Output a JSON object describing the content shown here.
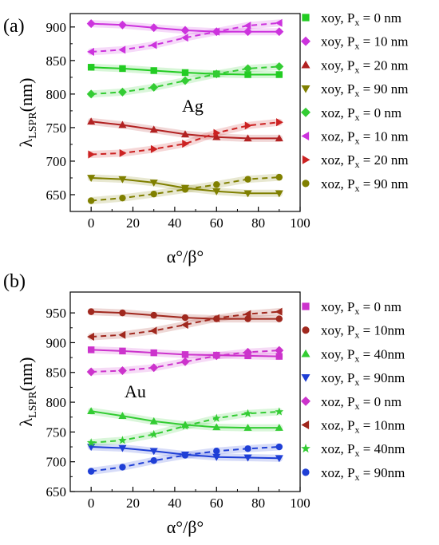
{
  "chart_data": [
    {
      "type": "line",
      "panel_label": "(a)",
      "annotation": "Ag",
      "xlabel": "α°/β°",
      "ylabel": {
        "main": "λ",
        "sub": "LSPR",
        "rest": "(nm)"
      },
      "xlim": [
        -10,
        100
      ],
      "ylim": [
        625,
        920
      ],
      "xticks": [
        0,
        20,
        40,
        60,
        80,
        100
      ],
      "yticks": [
        650,
        700,
        750,
        800,
        850,
        900
      ],
      "x": [
        0,
        15,
        30,
        45,
        60,
        75,
        90
      ],
      "series": [
        {
          "name": "xoy, P",
          "sub": "x",
          "suffix": " = 0 nm",
          "color": "#22cc22",
          "marker": "square",
          "dash": false,
          "values": [
            840,
            838,
            835,
            832,
            830,
            829,
            829
          ]
        },
        {
          "name": "xoy, P",
          "sub": "x",
          "suffix": " = 10 nm",
          "color": "#cc33dd",
          "marker": "diamond",
          "dash": false,
          "values": [
            905,
            903,
            899,
            895,
            893,
            893,
            893
          ]
        },
        {
          "name": "xoy, P",
          "sub": "x",
          "suffix": " = 20 nm",
          "color": "#b22222",
          "marker": "triangle-up",
          "dash": false,
          "values": [
            759,
            754,
            747,
            740,
            736,
            734,
            734
          ]
        },
        {
          "name": "xoy, P",
          "sub": "x",
          "suffix": " = 90 nm",
          "color": "#808000",
          "marker": "triangle-down",
          "dash": false,
          "values": [
            675,
            673,
            668,
            660,
            655,
            652,
            652
          ]
        },
        {
          "name": "xoz, P",
          "sub": "x",
          "suffix": " = 0 nm",
          "color": "#33cc33",
          "marker": "diamond",
          "dash": true,
          "values": [
            800,
            803,
            810,
            820,
            830,
            838,
            841
          ]
        },
        {
          "name": "xoz, P",
          "sub": "x",
          "suffix": " = 10 nm",
          "color": "#cc33dd",
          "marker": "triangle-left",
          "dash": true,
          "values": [
            863,
            866,
            873,
            884,
            893,
            902,
            906
          ]
        },
        {
          "name": "xoz, P",
          "sub": "x",
          "suffix": " = 20 nm",
          "color": "#cc2222",
          "marker": "triangle-right",
          "dash": true,
          "values": [
            710,
            712,
            718,
            726,
            742,
            753,
            758
          ]
        },
        {
          "name": "xoz, P",
          "sub": "x",
          "suffix": " = 90 nm",
          "color": "#808000",
          "marker": "circle",
          "dash": true,
          "values": [
            641,
            645,
            651,
            658,
            665,
            673,
            676
          ]
        }
      ]
    },
    {
      "type": "line",
      "panel_label": "(b)",
      "annotation": "Au",
      "xlabel": "α°/β°",
      "ylabel": {
        "main": "λ",
        "sub": "LSPR",
        "rest": "(nm)"
      },
      "xlim": [
        -10,
        100
      ],
      "ylim": [
        650,
        985
      ],
      "xticks": [
        0,
        20,
        40,
        60,
        80,
        100
      ],
      "yticks": [
        650,
        700,
        750,
        800,
        850,
        900,
        950
      ],
      "x": [
        0,
        15,
        30,
        45,
        60,
        75,
        90
      ],
      "series": [
        {
          "name": "xoy, P",
          "sub": "x",
          "suffix": " = 0 nm",
          "color": "#cc33cc",
          "marker": "square",
          "dash": false,
          "values": [
            888,
            886,
            883,
            880,
            879,
            878,
            877
          ]
        },
        {
          "name": "xoy, P",
          "sub": "x",
          "suffix": " = 10nm",
          "color": "#a0281e",
          "marker": "circle",
          "dash": false,
          "values": [
            952,
            950,
            946,
            942,
            940,
            940,
            940
          ]
        },
        {
          "name": "xoy, P",
          "sub": "x",
          "suffix": " = 40nm",
          "color": "#33cc33",
          "marker": "triangle-up",
          "dash": false,
          "values": [
            785,
            777,
            768,
            762,
            758,
            757,
            757
          ]
        },
        {
          "name": "xoy, P",
          "sub": "x",
          "suffix": " = 90nm",
          "color": "#1f3fd6",
          "marker": "triangle-down",
          "dash": false,
          "values": [
            725,
            723,
            718,
            712,
            708,
            707,
            706
          ]
        },
        {
          "name": "xoz, P",
          "sub": "x",
          "suffix": " = 0 nm",
          "color": "#cc33cc",
          "marker": "diamond",
          "dash": true,
          "values": [
            851,
            853,
            858,
            868,
            878,
            884,
            887
          ]
        },
        {
          "name": "xoz, P",
          "sub": "x",
          "suffix": " = 10nm",
          "color": "#a0281e",
          "marker": "triangle-left",
          "dash": true,
          "values": [
            910,
            913,
            920,
            930,
            941,
            948,
            952
          ]
        },
        {
          "name": "xoz, P",
          "sub": "x",
          "suffix": " = 40nm",
          "color": "#33cc33",
          "marker": "star",
          "dash": true,
          "values": [
            732,
            736,
            746,
            760,
            773,
            781,
            784
          ]
        },
        {
          "name": "xoz, P",
          "sub": "x",
          "suffix": " = 90nm",
          "color": "#1f3fd6",
          "marker": "circle",
          "dash": true,
          "values": [
            684,
            691,
            702,
            711,
            718,
            722,
            725
          ]
        }
      ]
    }
  ]
}
